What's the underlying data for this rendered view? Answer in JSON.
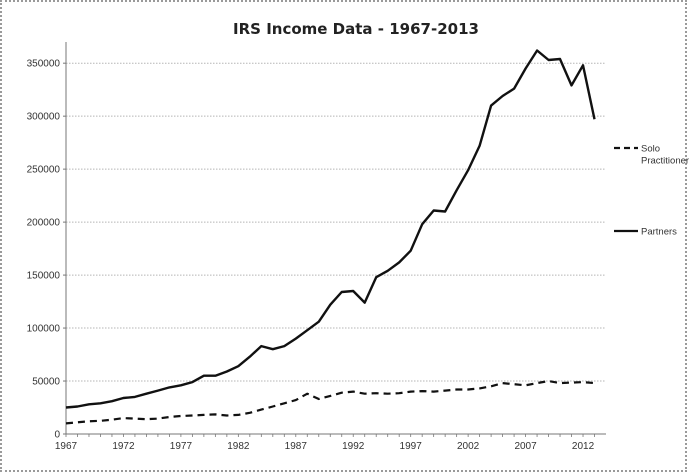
{
  "chart_data": {
    "type": "line",
    "title": "IRS Income Data - 1967-2013",
    "xlabel": "",
    "ylabel": "",
    "xlim": [
      1967,
      2014
    ],
    "ylim": [
      0,
      370000
    ],
    "yticks": [
      0,
      50000,
      100000,
      150000,
      200000,
      250000,
      300000,
      350000
    ],
    "ytick_labels": [
      "0",
      "50000",
      "100000",
      "150000",
      "200000",
      "250000",
      "300000",
      "350000"
    ],
    "xticks": [
      1967,
      1972,
      1977,
      1982,
      1987,
      1992,
      1997,
      2002,
      2007,
      2012
    ],
    "xtick_labels": [
      "1967",
      "1972",
      "1977",
      "1982",
      "1987",
      "1992",
      "1997",
      "2002",
      "2007",
      "2012"
    ],
    "grid": true,
    "legend_position": "right",
    "x": [
      1967,
      1968,
      1969,
      1970,
      1971,
      1972,
      1973,
      1974,
      1975,
      1976,
      1977,
      1978,
      1979,
      1980,
      1981,
      1982,
      1983,
      1984,
      1985,
      1986,
      1987,
      1988,
      1989,
      1990,
      1991,
      1992,
      1993,
      1994,
      1995,
      1996,
      1997,
      1998,
      1999,
      2000,
      2001,
      2002,
      2003,
      2004,
      2005,
      2006,
      2007,
      2008,
      2009,
      2010,
      2011,
      2012,
      2013
    ],
    "series": [
      {
        "name": "Solo Practitioner",
        "style": "dashed",
        "color": "#111111",
        "values": [
          10000,
          11000,
          12000,
          12500,
          13500,
          15000,
          14500,
          14000,
          14500,
          16000,
          17000,
          17500,
          18000,
          18500,
          17500,
          18000,
          20000,
          23000,
          26000,
          29000,
          32000,
          38000,
          33000,
          36000,
          39000,
          40000,
          38000,
          38500,
          38000,
          38500,
          40000,
          40500,
          40000,
          41000,
          42000,
          42000,
          43000,
          45000,
          48000,
          47000,
          46000,
          48000,
          50000,
          48000,
          48500,
          49000,
          48000
        ]
      },
      {
        "name": "Partners",
        "style": "solid",
        "color": "#111111",
        "values": [
          25000,
          26000,
          28000,
          29000,
          31000,
          34000,
          35000,
          38000,
          41000,
          44000,
          46000,
          49000,
          55000,
          55000,
          59000,
          64000,
          73000,
          83000,
          80000,
          83000,
          90000,
          98000,
          106000,
          122000,
          134000,
          135000,
          124000,
          148000,
          154000,
          162000,
          173000,
          198000,
          211000,
          210000,
          230000,
          249000,
          272000,
          310000,
          319000,
          326000,
          345000,
          362000,
          353000,
          354000,
          329000,
          348000,
          297000
        ]
      }
    ]
  }
}
